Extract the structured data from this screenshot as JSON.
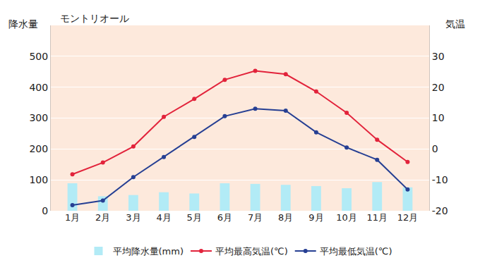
{
  "chart_data": {
    "type": "bar",
    "title": "モントリオール",
    "y_label": "降水量",
    "y2_label": "気温",
    "categories": [
      "1月",
      "2月",
      "3月",
      "4月",
      "5月",
      "6月",
      "7月",
      "8月",
      "9月",
      "10月",
      "11月",
      "12月"
    ],
    "series": [
      {
        "name": "平均降水量(mm)",
        "type": "bar",
        "color": "#b2ebf6",
        "values": [
          89,
          47,
          51,
          60,
          56,
          89,
          87,
          84,
          80,
          73,
          93,
          76
        ]
      },
      {
        "name": "平均最高気温(℃)",
        "type": "line",
        "color": "#e2233b",
        "marker": "circle",
        "axis": "y2",
        "values": [
          -8.2,
          -4.4,
          0.8,
          10.4,
          16.2,
          22.4,
          25.3,
          24.2,
          18.6,
          11.7,
          3.0,
          -4.2
        ]
      },
      {
        "name": "平均最低気温(℃)",
        "type": "line",
        "color": "#263f93",
        "marker": "circle",
        "axis": "y2",
        "values": [
          -18.2,
          -16.7,
          -9.1,
          -2.6,
          3.9,
          10.6,
          13.0,
          12.4,
          5.4,
          0.5,
          -3.5,
          -13.1
        ]
      }
    ],
    "ylim": [
      0,
      600
    ],
    "yticks": [
      0,
      100,
      200,
      300,
      400,
      500
    ],
    "y2lim": [
      -20,
      40
    ],
    "y2ticks": [
      -20,
      -10,
      0,
      10,
      20,
      30
    ],
    "grid": true,
    "legend": "bottom"
  }
}
